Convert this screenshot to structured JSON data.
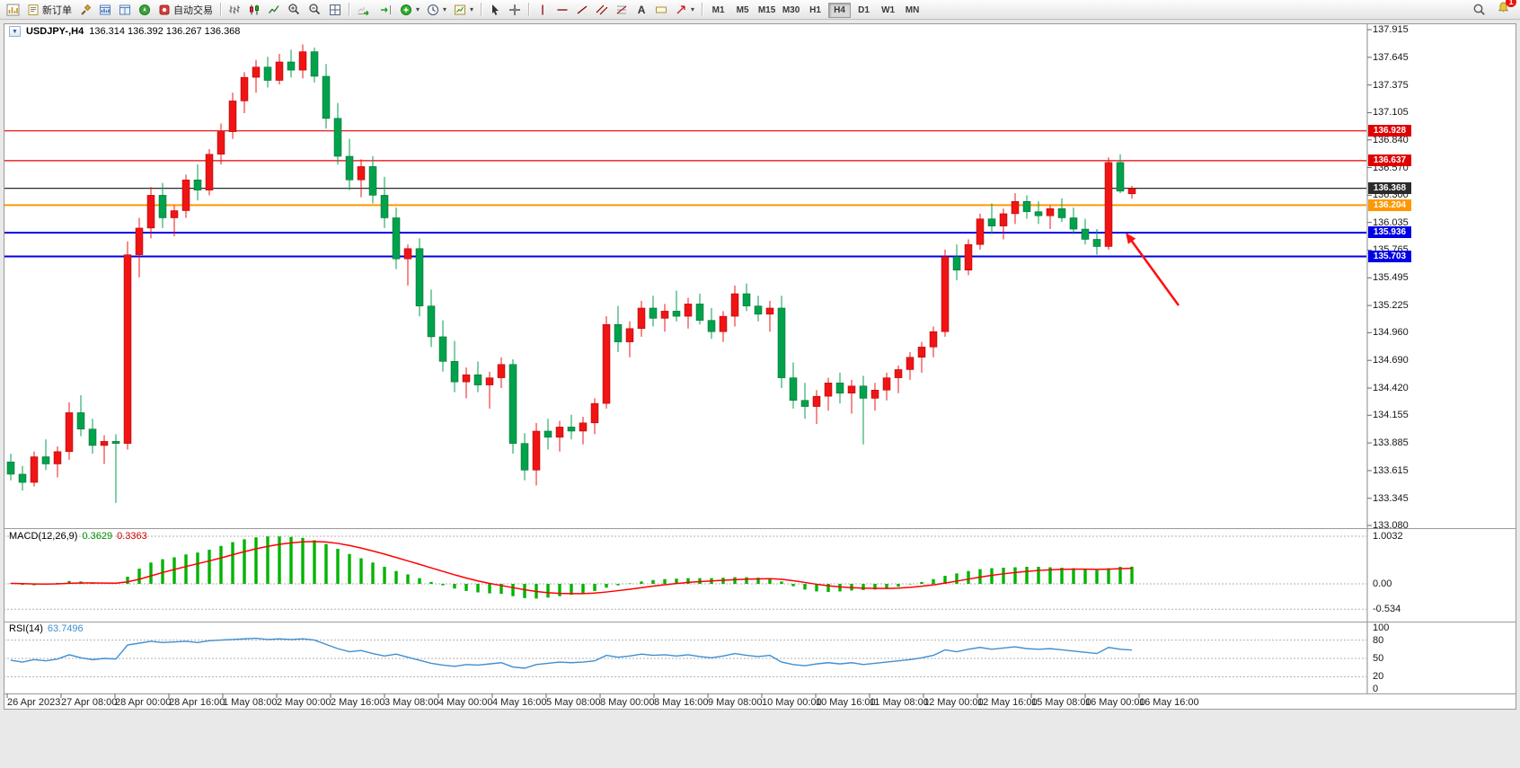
{
  "window": {
    "badge_count": "1"
  },
  "toolbar": {
    "new_order_label": "新订单",
    "auto_trading_label": "自动交易",
    "timeframes": [
      "M1",
      "M5",
      "M15",
      "M30",
      "H1",
      "H4",
      "D1",
      "W1",
      "MN"
    ],
    "active_timeframe": "H4"
  },
  "title": {
    "symbol_period": "USDJPY-,H4",
    "ohlc_text": "136.314 136.392 136.267 136.368"
  },
  "panes": {
    "macd": {
      "name": "MACD(12,26,9)",
      "value_main": "0.3629",
      "value_signal": "0.3363"
    },
    "rsi": {
      "name": "RSI(14)",
      "value": "63.7496"
    }
  },
  "chart_data": {
    "type": "candlestick",
    "symbol": "USDJPY-",
    "timeframe": "H4",
    "current_ohlc": {
      "open": 136.314,
      "high": 136.392,
      "low": 136.267,
      "close": 136.368
    },
    "up_color": "#f01414",
    "down_color": "#00a24c",
    "price_axis": [
      "137.915",
      "137.645",
      "137.375",
      "137.105",
      "136.840",
      "136.570",
      "136.300",
      "136.035",
      "135.765",
      "135.495",
      "135.225",
      "134.960",
      "134.690",
      "134.420",
      "134.155",
      "133.885",
      "133.615",
      "133.345",
      "133.080"
    ],
    "time_axis": [
      "26 Apr 2023",
      "27 Apr 08:00",
      "28 Apr 00:00",
      "28 Apr 16:00",
      "1 May 08:00",
      "2 May 00:00",
      "2 May 16:00",
      "3 May 08:00",
      "4 May 00:00",
      "4 May 16:00",
      "5 May 08:00",
      "8 May 00:00",
      "8 May 16:00",
      "9 May 08:00",
      "10 May 00:00",
      "10 May 16:00",
      "11 May 08:00",
      "12 May 00:00",
      "12 May 16:00",
      "15 May 08:00",
      "16 May 00:00",
      "16 May 16:00"
    ],
    "levels": [
      {
        "price": 136.928,
        "label": "136.928",
        "color": "#e00000",
        "width": 1.2
      },
      {
        "price": 136.637,
        "label": "136.637",
        "color": "#e00000",
        "width": 1.2
      },
      {
        "price": 136.368,
        "label": "136.368",
        "color": "#2b2b2b",
        "width": 1.2
      },
      {
        "price": 136.204,
        "label": "136.204",
        "color": "#ff9800",
        "width": 2
      },
      {
        "price": 135.936,
        "label": "135.936",
        "color": "#0000e6",
        "width": 2
      },
      {
        "price": 135.703,
        "label": "135.703",
        "color": "#0000e6",
        "width": 2
      }
    ],
    "candles": [
      [
        133.7,
        133.78,
        133.52,
        133.58
      ],
      [
        133.58,
        133.66,
        133.42,
        133.5
      ],
      [
        133.5,
        133.8,
        133.46,
        133.75
      ],
      [
        133.75,
        133.92,
        133.62,
        133.68
      ],
      [
        133.68,
        133.85,
        133.55,
        133.8
      ],
      [
        133.8,
        134.28,
        133.72,
        134.18
      ],
      [
        134.18,
        134.35,
        133.95,
        134.02
      ],
      [
        134.02,
        134.12,
        133.78,
        133.86
      ],
      [
        133.86,
        133.96,
        133.68,
        133.9
      ],
      [
        133.9,
        133.97,
        133.3,
        133.88
      ],
      [
        133.88,
        135.85,
        133.82,
        135.72
      ],
      [
        135.72,
        136.08,
        135.5,
        135.98
      ],
      [
        135.98,
        136.38,
        135.88,
        136.3
      ],
      [
        136.3,
        136.42,
        135.98,
        136.08
      ],
      [
        136.08,
        136.2,
        135.9,
        136.15
      ],
      [
        136.15,
        136.5,
        136.08,
        136.45
      ],
      [
        136.45,
        136.6,
        136.25,
        136.35
      ],
      [
        136.35,
        136.75,
        136.3,
        136.7
      ],
      [
        136.7,
        137.0,
        136.6,
        136.92
      ],
      [
        136.92,
        137.3,
        136.85,
        137.22
      ],
      [
        137.22,
        137.5,
        137.1,
        137.45
      ],
      [
        137.45,
        137.62,
        137.3,
        137.55
      ],
      [
        137.55,
        137.65,
        137.35,
        137.42
      ],
      [
        137.42,
        137.68,
        137.38,
        137.6
      ],
      [
        137.6,
        137.72,
        137.45,
        137.52
      ],
      [
        137.52,
        137.77,
        137.44,
        137.7
      ],
      [
        137.7,
        137.74,
        137.4,
        137.46
      ],
      [
        137.46,
        137.58,
        136.95,
        137.05
      ],
      [
        137.05,
        137.2,
        136.6,
        136.68
      ],
      [
        136.68,
        136.85,
        136.35,
        136.45
      ],
      [
        136.45,
        136.65,
        136.28,
        136.58
      ],
      [
        136.58,
        136.68,
        136.22,
        136.3
      ],
      [
        136.3,
        136.48,
        135.98,
        136.08
      ],
      [
        136.08,
        136.18,
        135.58,
        135.68
      ],
      [
        135.68,
        135.82,
        135.42,
        135.78
      ],
      [
        135.78,
        135.88,
        135.12,
        135.22
      ],
      [
        135.22,
        135.38,
        134.82,
        134.92
      ],
      [
        134.92,
        135.08,
        134.58,
        134.68
      ],
      [
        134.68,
        134.88,
        134.38,
        134.48
      ],
      [
        134.48,
        134.62,
        134.32,
        134.55
      ],
      [
        134.55,
        134.68,
        134.38,
        134.45
      ],
      [
        134.45,
        134.58,
        134.22,
        134.52
      ],
      [
        134.52,
        134.72,
        134.42,
        134.65
      ],
      [
        134.65,
        134.7,
        133.78,
        133.88
      ],
      [
        133.88,
        133.98,
        133.52,
        133.62
      ],
      [
        133.62,
        134.08,
        133.47,
        134.0
      ],
      [
        134.0,
        134.12,
        133.82,
        133.94
      ],
      [
        133.94,
        134.1,
        133.8,
        134.04
      ],
      [
        134.04,
        134.16,
        133.92,
        134.0
      ],
      [
        134.0,
        134.14,
        133.87,
        134.08
      ],
      [
        134.08,
        134.32,
        133.97,
        134.27
      ],
      [
        134.27,
        135.12,
        134.22,
        135.04
      ],
      [
        135.04,
        135.22,
        134.77,
        134.87
      ],
      [
        134.87,
        135.07,
        134.72,
        135.0
      ],
      [
        135.0,
        135.27,
        134.92,
        135.2
      ],
      [
        135.2,
        135.32,
        135.02,
        135.1
      ],
      [
        135.1,
        135.24,
        134.97,
        135.17
      ],
      [
        135.17,
        135.37,
        135.07,
        135.12
      ],
      [
        135.12,
        135.3,
        135.0,
        135.24
      ],
      [
        135.24,
        135.34,
        135.04,
        135.08
      ],
      [
        135.08,
        135.2,
        134.9,
        134.97
      ],
      [
        134.97,
        135.17,
        134.87,
        135.12
      ],
      [
        135.12,
        135.42,
        135.02,
        135.34
      ],
      [
        135.34,
        135.44,
        135.17,
        135.22
      ],
      [
        135.22,
        135.32,
        135.07,
        135.14
      ],
      [
        135.14,
        135.27,
        134.97,
        135.2
      ],
      [
        135.2,
        135.32,
        134.42,
        134.52
      ],
      [
        134.52,
        134.67,
        134.22,
        134.3
      ],
      [
        134.3,
        134.47,
        134.12,
        134.24
      ],
      [
        134.24,
        134.4,
        134.07,
        134.34
      ],
      [
        134.34,
        134.52,
        134.2,
        134.47
      ],
      [
        134.47,
        134.57,
        134.27,
        134.37
      ],
      [
        134.37,
        134.5,
        134.17,
        134.44
      ],
      [
        134.44,
        134.54,
        133.87,
        134.32
      ],
      [
        134.32,
        134.47,
        134.2,
        134.4
      ],
      [
        134.4,
        134.57,
        134.3,
        134.52
      ],
      [
        134.52,
        134.64,
        134.37,
        134.6
      ],
      [
        134.6,
        134.77,
        134.5,
        134.72
      ],
      [
        134.72,
        134.87,
        134.57,
        134.82
      ],
      [
        134.82,
        135.02,
        134.72,
        134.97
      ],
      [
        134.97,
        135.77,
        134.92,
        135.7
      ],
      [
        135.7,
        135.82,
        135.47,
        135.57
      ],
      [
        135.57,
        135.87,
        135.52,
        135.82
      ],
      [
        135.82,
        136.12,
        135.77,
        136.07
      ],
      [
        136.07,
        136.22,
        135.92,
        136.0
      ],
      [
        136.0,
        136.17,
        135.87,
        136.12
      ],
      [
        136.12,
        136.32,
        136.02,
        136.24
      ],
      [
        136.24,
        136.3,
        136.07,
        136.14
      ],
      [
        136.14,
        136.24,
        136.02,
        136.1
      ],
      [
        136.1,
        136.2,
        135.97,
        136.17
      ],
      [
        136.17,
        136.27,
        136.04,
        136.08
      ],
      [
        136.08,
        136.18,
        135.92,
        135.97
      ],
      [
        135.97,
        136.07,
        135.82,
        135.87
      ],
      [
        135.87,
        135.97,
        135.72,
        135.8
      ],
      [
        135.8,
        136.67,
        135.77,
        136.62
      ],
      [
        136.62,
        136.7,
        136.32,
        136.34
      ],
      [
        136.314,
        136.392,
        136.267,
        136.368
      ]
    ],
    "indicators": {
      "macd": {
        "axis": [
          "1.0032",
          "0.00",
          "-0.534"
        ],
        "histogram_color": "#00b400",
        "signal_color": "#ff0000",
        "values": [
          0.01,
          -0.02,
          -0.03,
          -0.01,
          0.02,
          0.06,
          0.05,
          0.02,
          0.0,
          0.01,
          0.15,
          0.32,
          0.45,
          0.52,
          0.56,
          0.62,
          0.66,
          0.72,
          0.8,
          0.88,
          0.94,
          0.98,
          1.0,
          1.0,
          0.99,
          0.97,
          0.92,
          0.84,
          0.74,
          0.63,
          0.54,
          0.45,
          0.36,
          0.27,
          0.2,
          0.12,
          0.04,
          -0.03,
          -0.1,
          -0.15,
          -0.18,
          -0.2,
          -0.21,
          -0.26,
          -0.3,
          -0.31,
          -0.29,
          -0.26,
          -0.23,
          -0.2,
          -0.15,
          -0.08,
          -0.03,
          0.01,
          0.05,
          0.08,
          0.1,
          0.11,
          0.12,
          0.12,
          0.12,
          0.13,
          0.14,
          0.14,
          0.13,
          0.12,
          0.05,
          -0.05,
          -0.12,
          -0.16,
          -0.17,
          -0.16,
          -0.14,
          -0.13,
          -0.12,
          -0.1,
          -0.06,
          -0.01,
          0.04,
          0.1,
          0.17,
          0.22,
          0.27,
          0.31,
          0.33,
          0.34,
          0.35,
          0.36,
          0.36,
          0.35,
          0.34,
          0.33,
          0.31,
          0.29,
          0.33,
          0.36,
          0.3629
        ]
      },
      "rsi": {
        "axis": [
          "100",
          "80",
          "50",
          "20",
          "0"
        ],
        "level_lines": [
          80,
          50,
          20
        ],
        "line_color": "#3f8fd2",
        "values": [
          47,
          44,
          48,
          46,
          49,
          56,
          51,
          48,
          50,
          49,
          72,
          75,
          78,
          76,
          77,
          78,
          76,
          79,
          80,
          81,
          82,
          83,
          81,
          82,
          81,
          82,
          80,
          73,
          66,
          61,
          63,
          58,
          54,
          57,
          52,
          47,
          42,
          39,
          37,
          40,
          39,
          41,
          43,
          36,
          34,
          40,
          42,
          44,
          43,
          44,
          46,
          55,
          52,
          54,
          57,
          55,
          56,
          54,
          56,
          53,
          51,
          54,
          58,
          55,
          53,
          55,
          44,
          40,
          38,
          41,
          43,
          41,
          43,
          40,
          42,
          44,
          46,
          48,
          51,
          55,
          64,
          61,
          65,
          68,
          65,
          67,
          69,
          66,
          65,
          66,
          64,
          62,
          60,
          58,
          68,
          65,
          63.75
        ]
      }
    },
    "annotation_arrow": {
      "from": [
        1312,
        340
      ],
      "to": [
        1253,
        259
      ],
      "color": "#ff1111"
    }
  }
}
